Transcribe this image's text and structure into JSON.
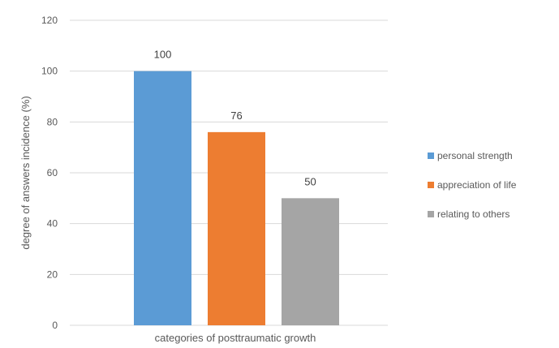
{
  "chart_data": {
    "type": "bar",
    "categories": [
      "categories of posttraumatic growth"
    ],
    "series": [
      {
        "name": "personal strength",
        "values": [
          100
        ],
        "color": "#5b9bd5"
      },
      {
        "name": "appreciation of life",
        "values": [
          76
        ],
        "color": "#ed7d31"
      },
      {
        "name": "relating to others",
        "values": [
          50
        ],
        "color": "#a5a5a5"
      }
    ],
    "xlabel": "categories of posttraumatic growth",
    "ylabel": "degree of answers incidence (%)",
    "ylim": [
      0,
      120
    ],
    "yticks": [
      0,
      20,
      40,
      60,
      80,
      100,
      120
    ],
    "grid": true,
    "legend_position": "right",
    "data_labels": true
  }
}
